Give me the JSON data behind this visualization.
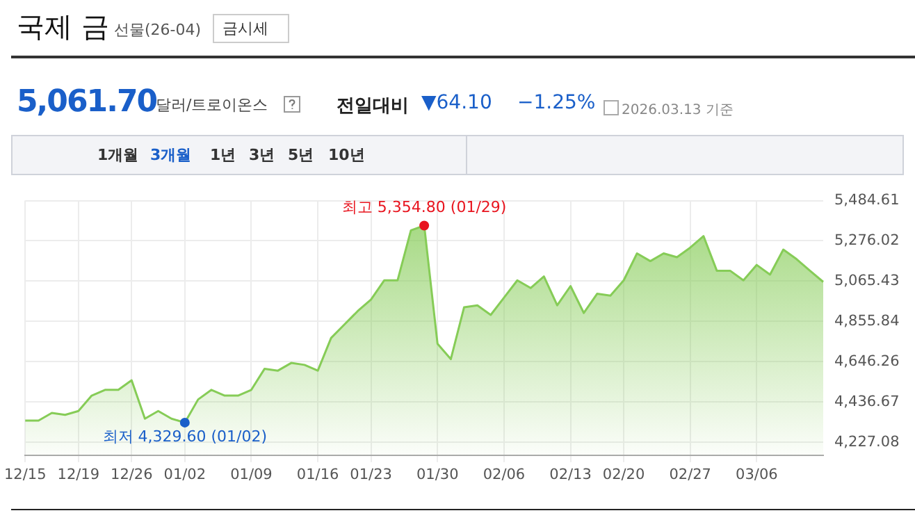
{
  "chart_data": {
    "type": "area",
    "title": "국제 금",
    "subtitle": "선물(26-04)",
    "categories": [
      "12/15",
      null,
      null,
      null,
      "12/19",
      null,
      null,
      null,
      "12/26",
      null,
      null,
      null,
      "01/02",
      null,
      null,
      null,
      null,
      "01/09",
      null,
      null,
      null,
      null,
      "01/16",
      null,
      null,
      null,
      "01/23",
      null,
      null,
      null,
      null,
      "01/30",
      null,
      null,
      null,
      null,
      "02/06",
      null,
      null,
      null,
      null,
      "02/13",
      null,
      null,
      null,
      "02/20",
      null,
      null,
      null,
      null,
      "02/27",
      null,
      null,
      null,
      null,
      "03/06",
      null,
      null,
      null,
      null,
      null
    ],
    "series": [
      {
        "color": "#86cc57",
        "values": [
          4340,
          4340,
          4380,
          4370,
          4390,
          4470,
          4500,
          4500,
          4550,
          4350,
          4390,
          4350,
          4329.6,
          4450,
          4500,
          4470,
          4470,
          4500,
          4610,
          4600,
          4640,
          4630,
          4600,
          4770,
          4840,
          4910,
          4970,
          5070,
          5070,
          5330,
          5354.8,
          4740,
          4660,
          4930,
          4940,
          4890,
          4980,
          5070,
          5030,
          5090,
          4940,
          5040,
          4900,
          5000,
          4990,
          5070,
          5210,
          5170,
          5210,
          5190,
          5240,
          5300,
          5120,
          5120,
          5070,
          5150,
          5100,
          5230,
          5180,
          5120,
          5061.7
        ]
      }
    ],
    "ylim": [
      4160,
      5484.61
    ],
    "yticks": [
      {
        "value": 4227.08,
        "label": "4,227.08"
      },
      {
        "value": 4436.67,
        "label": "4,436.67"
      },
      {
        "value": 4646.26,
        "label": "4,646.26"
      },
      {
        "value": 4855.84,
        "label": "4,855.84"
      },
      {
        "value": 5065.43,
        "label": "5,065.43"
      },
      {
        "value": 5276.02,
        "label": "5,276.02"
      },
      {
        "value": 5484.61,
        "label": "5,484.61"
      }
    ],
    "grid": true,
    "legend": false,
    "marker": "none",
    "annotations": [
      {
        "text": "최고 5,354.80 (01/29)",
        "y": 5354.8
      },
      {
        "text": "최저 4,329.60 (01/02)",
        "y": 4329.6
      },
      "금시세",
      "5,061.70",
      "달러/트로이온스",
      "전일대비",
      "▼64.10",
      "−1.25%",
      "2026.03.13 기준",
      "1개월",
      "3개월",
      "1년",
      "3년",
      "5년",
      "10년"
    ]
  }
}
